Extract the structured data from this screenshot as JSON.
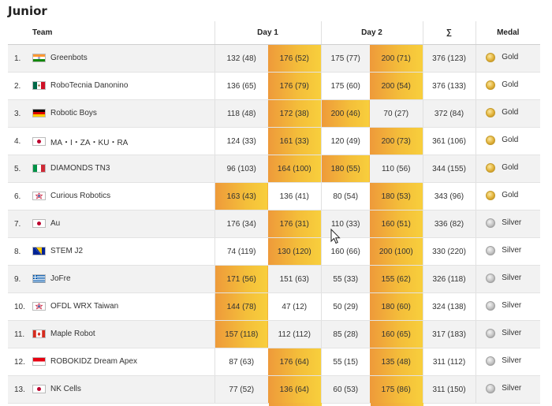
{
  "title": "Junior",
  "headers": {
    "team": "Team",
    "day1": "Day 1",
    "day2": "Day 2",
    "sum": "∑",
    "medal": "Medal"
  },
  "rows": [
    {
      "rank": "1.",
      "flag": "india-flag-icon",
      "team": "Greenbots",
      "d1a": "132 (48)",
      "d1b": "176 (52)",
      "d2a": "175 (77)",
      "d2b": "200 (71)",
      "sum": "376 (123)",
      "medal": "Gold"
    },
    {
      "rank": "2.",
      "flag": "mexico-flag-icon",
      "team": "RoboTecnia Danonino",
      "d1a": "136 (65)",
      "d1b": "176 (79)",
      "d2a": "175 (60)",
      "d2b": "200 (54)",
      "sum": "376 (133)",
      "medal": "Gold"
    },
    {
      "rank": "3.",
      "flag": "germany-flag-icon",
      "team": "Robotic Boys",
      "d1a": "118 (48)",
      "d1b": "172 (38)",
      "d2a": "200 (46)",
      "d2b": "70 (27)",
      "sum": "372 (84)",
      "medal": "Gold"
    },
    {
      "rank": "4.",
      "flag": "japan-flag-icon",
      "team": "MA・I・ZA・KU・RA",
      "d1a": "124 (33)",
      "d1b": "161 (33)",
      "d2a": "120 (49)",
      "d2b": "200 (73)",
      "sum": "361 (106)",
      "medal": "Gold"
    },
    {
      "rank": "5.",
      "flag": "italy-flag-icon",
      "team": "DIAMONDS TN3",
      "d1a": "96 (103)",
      "d1b": "164 (100)",
      "d2a": "180 (55)",
      "d2b": "110 (56)",
      "sum": "344 (155)",
      "medal": "Gold"
    },
    {
      "rank": "6.",
      "flag": "chinese-taipei-flag-icon",
      "team": "Curious Robotics",
      "d1a": "163 (43)",
      "d1b": "136 (41)",
      "d2a": "80 (54)",
      "d2b": "180 (53)",
      "sum": "343 (96)",
      "medal": "Gold"
    },
    {
      "rank": "7.",
      "flag": "japan-flag-icon",
      "team": "Au",
      "d1a": "176 (34)",
      "d1b": "176 (31)",
      "d2a": "110 (33)",
      "d2b": "160 (51)",
      "sum": "336 (82)",
      "medal": "Silver"
    },
    {
      "rank": "8.",
      "flag": "bosnia-flag-icon",
      "team": "STEM J2",
      "d1a": "74 (119)",
      "d1b": "130 (120)",
      "d2a": "160 (66)",
      "d2b": "200 (100)",
      "sum": "330 (220)",
      "medal": "Silver"
    },
    {
      "rank": "9.",
      "flag": "greece-flag-icon",
      "team": "JoFre",
      "d1a": "171 (56)",
      "d1b": "151 (63)",
      "d2a": "55 (33)",
      "d2b": "155 (62)",
      "sum": "326 (118)",
      "medal": "Silver"
    },
    {
      "rank": "10.",
      "flag": "chinese-taipei-flag-icon",
      "team": "OFDL WRX Taiwan",
      "d1a": "144 (78)",
      "d1b": "47 (12)",
      "d2a": "50 (29)",
      "d2b": "180 (60)",
      "sum": "324 (138)",
      "medal": "Silver"
    },
    {
      "rank": "11.",
      "flag": "canada-flag-icon",
      "team": "Maple Robot",
      "d1a": "157 (118)",
      "d1b": "112 (112)",
      "d2a": "85 (28)",
      "d2b": "160 (65)",
      "sum": "317 (183)",
      "medal": "Silver"
    },
    {
      "rank": "12.",
      "flag": "indonesia-flag-icon",
      "team": "ROBOKIDZ Dream Apex",
      "d1a": "87 (63)",
      "d1b": "176 (64)",
      "d2a": "55 (15)",
      "d2b": "135 (48)",
      "sum": "311 (112)",
      "medal": "Silver"
    },
    {
      "rank": "13.",
      "flag": "japan-flag-icon",
      "team": "NK Cells",
      "d1a": "77 (52)",
      "d1b": "136 (64)",
      "d2a": "60 (53)",
      "d2b": "175 (86)",
      "sum": "311 (150)",
      "medal": "Silver"
    }
  ],
  "highlight": {
    "colors": [
      "#ee9a3a",
      "#f8cf3c"
    ],
    "cells": [
      [
        "d1b",
        "d2b"
      ],
      [
        "d1b",
        "d2b"
      ],
      [
        "d1b",
        "d2a"
      ],
      [
        "d1b",
        "d2b"
      ],
      [
        "d1b",
        "d2a"
      ],
      [
        "d1a",
        "d2b"
      ],
      [
        "d1b",
        "d2b"
      ],
      [
        "d1b",
        "d2b"
      ],
      [
        "d1a",
        "d2b"
      ],
      [
        "d1a",
        "d2b"
      ],
      [
        "d1a",
        "d2b"
      ],
      [
        "d1b",
        "d2b"
      ],
      [
        "d1b",
        "d2b"
      ]
    ]
  }
}
